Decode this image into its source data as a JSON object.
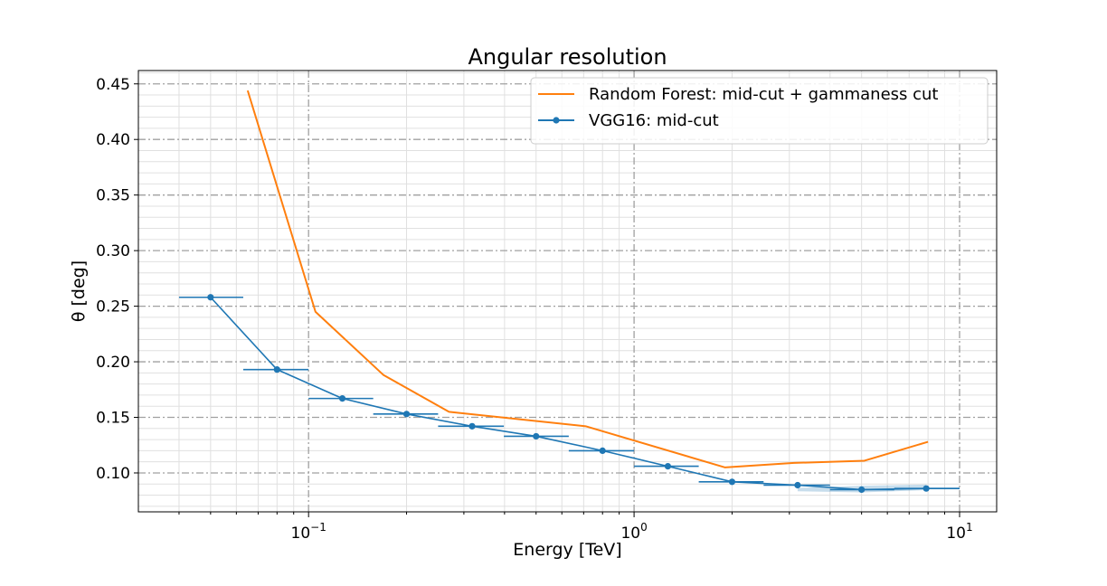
{
  "chart_data": {
    "type": "line",
    "title": "Angular resolution",
    "xlabel": "Energy [TeV]",
    "ylabel": "θ [deg]",
    "xscale": "log",
    "xlim": [
      0.03,
      13
    ],
    "ylim": [
      0.065,
      0.462
    ],
    "x_ticks": [
      {
        "value": 0.1,
        "mantissa": "10",
        "exponent": "−1"
      },
      {
        "value": 1,
        "mantissa": "10",
        "exponent": "0"
      },
      {
        "value": 10,
        "mantissa": "10",
        "exponent": "1"
      }
    ],
    "y_ticks": [
      {
        "value": 0.1,
        "label": "0.10"
      },
      {
        "value": 0.15,
        "label": "0.15"
      },
      {
        "value": 0.2,
        "label": "0.20"
      },
      {
        "value": 0.25,
        "label": "0.25"
      },
      {
        "value": 0.3,
        "label": "0.30"
      },
      {
        "value": 0.35,
        "label": "0.35"
      },
      {
        "value": 0.4,
        "label": "0.40"
      },
      {
        "value": 0.45,
        "label": "0.45"
      }
    ],
    "grid": true,
    "legend_position": "top-right",
    "series": [
      {
        "name": "Random Forest: mid-cut + gammaness cut",
        "color": "#ff7f0e",
        "x": [
          0.065,
          0.105,
          0.17,
          0.27,
          0.71,
          1.9,
          3.1,
          5.1,
          8.0
        ],
        "y": [
          0.444,
          0.245,
          0.188,
          0.155,
          0.142,
          0.105,
          0.109,
          0.111,
          0.128
        ]
      },
      {
        "name": "VGG16: mid-cut",
        "color": "#1f77b4",
        "markers": true,
        "x": [
          0.05,
          0.08,
          0.127,
          0.2,
          0.318,
          0.5,
          0.8,
          1.27,
          2.0,
          3.18,
          5.0,
          7.9
        ],
        "y": [
          0.258,
          0.193,
          0.167,
          0.153,
          0.142,
          0.133,
          0.12,
          0.106,
          0.092,
          0.089,
          0.085,
          0.086
        ],
        "x_err_low": [
          0.04,
          0.063,
          0.1,
          0.158,
          0.25,
          0.398,
          0.63,
          1.0,
          1.58,
          2.5,
          4.0,
          6.3
        ],
        "x_err_high": [
          0.063,
          0.1,
          0.158,
          0.25,
          0.398,
          0.63,
          1.0,
          1.58,
          2.5,
          4.0,
          6.3,
          10.0
        ]
      }
    ]
  }
}
